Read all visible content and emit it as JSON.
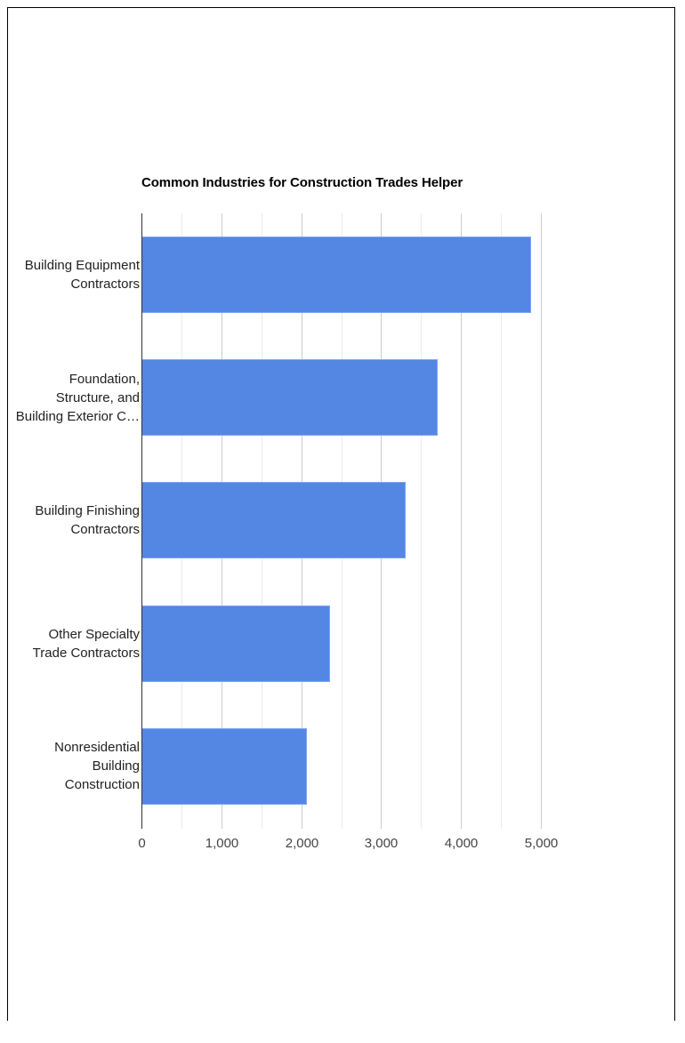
{
  "chart_data": {
    "type": "bar",
    "orientation": "horizontal",
    "title": "Common Industries for Construction Trades Helper",
    "xlabel": "",
    "ylabel": "",
    "categories": [
      "Building Equipment Contractors",
      "Foundation, Structure, and Building Exterior C…",
      "Building Finishing Contractors",
      "Other Specialty Trade Contractors",
      "Nonresidential Building Construction"
    ],
    "category_lines": [
      [
        "Building Equipment",
        "Contractors"
      ],
      [
        "Foundation,",
        "Structure, and",
        "Building Exterior C…"
      ],
      [
        "Building Finishing",
        "Contractors"
      ],
      [
        "Other Specialty",
        "Trade Contractors"
      ],
      [
        "Nonresidential",
        "Building",
        "Construction"
      ]
    ],
    "values": [
      4880,
      3710,
      3310,
      2360,
      2070
    ],
    "xlim": [
      0,
      5000
    ],
    "xticks": [
      "0",
      "1,000",
      "2,000",
      "3,000",
      "4,000",
      "5,000"
    ],
    "grid": true,
    "legend": "none",
    "bar_color": "#5486e4"
  }
}
